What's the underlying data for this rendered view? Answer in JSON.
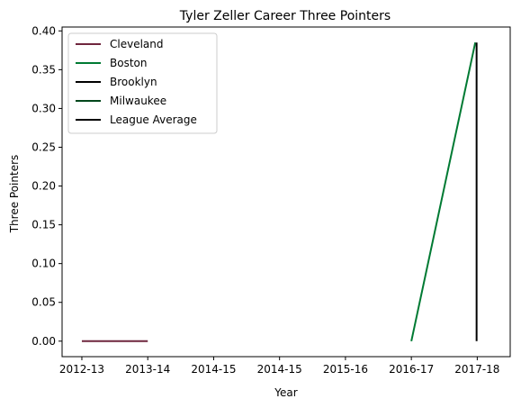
{
  "chart_data": {
    "type": "line",
    "title": "Tyler Zeller Career Three Pointers",
    "xlabel": "Year",
    "ylabel": "Three Pointers",
    "x_tick_labels": [
      "2012-13",
      "2013-14",
      "2014-15",
      "2014-15",
      "2015-16",
      "2016-17",
      "2017-18"
    ],
    "x_range": [
      -0.3,
      6.5
    ],
    "ylim": [
      -0.02,
      0.405
    ],
    "y_ticks": [
      "0.00",
      "0.05",
      "0.10",
      "0.15",
      "0.20",
      "0.25",
      "0.30",
      "0.35",
      "0.40"
    ],
    "y_tick_values": [
      0.0,
      0.05,
      0.1,
      0.15,
      0.2,
      0.25,
      0.3,
      0.35,
      0.4
    ],
    "grid": false,
    "legend_position": "top-left",
    "series": [
      {
        "name": "Cleveland",
        "color": "#6f263d",
        "points": [
          [
            0,
            0.0
          ],
          [
            1,
            0.0
          ]
        ]
      },
      {
        "name": "Boston",
        "color": "#007a33",
        "points": [
          [
            5,
            0.0
          ],
          [
            5.97,
            0.385
          ]
        ]
      },
      {
        "name": "Brooklyn",
        "color": "#000000",
        "points": []
      },
      {
        "name": "Milwaukee",
        "color": "#00471b",
        "points": []
      },
      {
        "name": "League Average",
        "color": "#000000",
        "points": [
          [
            5.99,
            0.385
          ],
          [
            5.99,
            0.0
          ]
        ]
      }
    ]
  }
}
